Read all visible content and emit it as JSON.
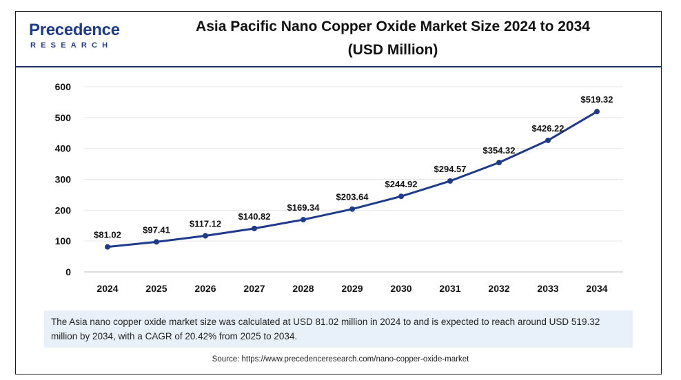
{
  "logo": {
    "word": "Precedence",
    "sub": "RESEARCH"
  },
  "title_line1": "Asia Pacific Nano Copper Oxide Market Size 2024 to 2034",
  "title_line2": "(USD Million)",
  "colors": {
    "line": "#1e3a8a",
    "note_bg": "#e8f0f9",
    "header_rule": "#1e2f6e"
  },
  "chart_data": {
    "type": "line",
    "categories": [
      "2024",
      "2025",
      "2026",
      "2027",
      "2028",
      "2029",
      "2030",
      "2031",
      "2032",
      "2033",
      "2034"
    ],
    "values": [
      81.02,
      97.41,
      117.12,
      140.82,
      169.34,
      203.64,
      244.92,
      294.57,
      354.32,
      426.22,
      519.32
    ],
    "data_labels": [
      "$81.02",
      "$97.41",
      "$117.12",
      "$140.82",
      "$169.34",
      "$203.64",
      "$244.92",
      "$294.57",
      "$354.32",
      "$426.22",
      "$519.32"
    ],
    "yticks": [
      "0",
      "100",
      "200",
      "300",
      "400",
      "500",
      "600"
    ],
    "ylim": [
      0,
      600
    ],
    "xlabel": "",
    "ylabel": "",
    "grid": true,
    "legend": "none"
  },
  "note": "The Asia nano copper oxide market size was calculated at USD 81.02 million in 2024 to and is expected to reach around USD 519.32 million by 2034, with a CAGR of 20.42% from 2025 to 2034.",
  "source": "Source: https://www.precedenceresearch.com/nano-copper-oxide-market"
}
